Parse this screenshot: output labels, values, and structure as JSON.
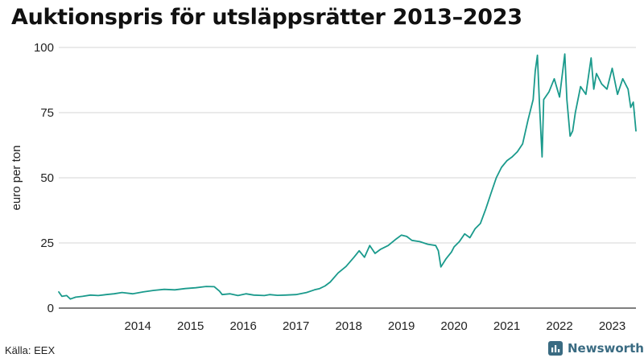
{
  "page": {
    "title": "Auktionspris för utsläppsrätter 2013–2023",
    "source": "Källa: EEX",
    "brand": "Newsworthy"
  },
  "colors": {
    "line": "#1a9a8c",
    "grid": "#d6d6d6",
    "axis": "#333333",
    "brand": "#3a6b82"
  },
  "chart_data": {
    "type": "line",
    "title": "Auktionspris för utsläppsrätter 2013–2023",
    "xlabel": "",
    "ylabel": "euro per ton",
    "xlim": [
      2013,
      2023.95
    ],
    "ylim": [
      0,
      100
    ],
    "y_ticks": [
      0,
      25,
      50,
      75,
      100
    ],
    "x_ticks": [
      2014,
      2015,
      2016,
      2017,
      2018,
      2019,
      2020,
      2021,
      2022,
      2023
    ],
    "grid": true,
    "series": [
      {
        "name": "Auktionspris",
        "x": [
          2013.0,
          2013.06,
          2013.15,
          2013.22,
          2013.32,
          2013.45,
          2013.6,
          2013.75,
          2013.9,
          2014.05,
          2014.2,
          2014.4,
          2014.6,
          2014.8,
          2015.0,
          2015.2,
          2015.4,
          2015.6,
          2015.8,
          2015.95,
          2016.05,
          2016.1,
          2016.25,
          2016.4,
          2016.55,
          2016.7,
          2016.9,
          2017.0,
          2017.15,
          2017.3,
          2017.5,
          2017.7,
          2017.85,
          2017.95,
          2018.05,
          2018.15,
          2018.3,
          2018.45,
          2018.6,
          2018.7,
          2018.8,
          2018.9,
          2019.0,
          2019.1,
          2019.25,
          2019.4,
          2019.5,
          2019.6,
          2019.7,
          2019.85,
          2020.0,
          2020.15,
          2020.2,
          2020.25,
          2020.35,
          2020.45,
          2020.5,
          2020.6,
          2020.7,
          2020.8,
          2020.9,
          2021.0,
          2021.1,
          2021.2,
          2021.3,
          2021.4,
          2021.5,
          2021.6,
          2021.7,
          2021.8,
          2021.9,
          2022.0,
          2022.04,
          2022.08,
          2022.12,
          2022.17,
          2022.2,
          2022.3,
          2022.4,
          2022.5,
          2022.6,
          2022.64,
          2022.7,
          2022.75,
          2022.8,
          2022.9,
          2023.0,
          2023.1,
          2023.15,
          2023.2,
          2023.3,
          2023.4,
          2023.5,
          2023.6,
          2023.7,
          2023.8,
          2023.85,
          2023.9,
          2023.95
        ],
        "values": [
          6.2,
          4.5,
          4.8,
          3.5,
          4.2,
          4.5,
          5.0,
          4.8,
          5.2,
          5.5,
          6.0,
          5.5,
          6.2,
          6.8,
          7.2,
          7.0,
          7.5,
          7.8,
          8.3,
          8.2,
          6.5,
          5.2,
          5.5,
          4.8,
          5.5,
          5.0,
          4.8,
          5.2,
          4.9,
          5.0,
          5.2,
          6.0,
          7.0,
          7.5,
          8.5,
          10.0,
          13.5,
          16.0,
          19.5,
          22.0,
          19.5,
          24.0,
          21.0,
          22.5,
          24.0,
          26.5,
          28.0,
          27.5,
          26.0,
          25.5,
          24.5,
          24.0,
          22.0,
          15.8,
          19.0,
          21.5,
          23.5,
          25.5,
          28.5,
          27.0,
          30.5,
          32.5,
          38.0,
          44.0,
          50.0,
          54.0,
          56.5,
          58.0,
          60.0,
          63.0,
          72.0,
          80.0,
          91.0,
          97.0,
          78.0,
          58.0,
          80.0,
          83.0,
          88.0,
          81.0,
          97.5,
          80.0,
          66.0,
          68.0,
          75.0,
          85.0,
          82.0,
          96.0,
          84.0,
          90.0,
          86.0,
          84.0,
          92.0,
          82.0,
          88.0,
          84.0,
          77.0,
          79.0,
          68.0
        ]
      }
    ]
  }
}
